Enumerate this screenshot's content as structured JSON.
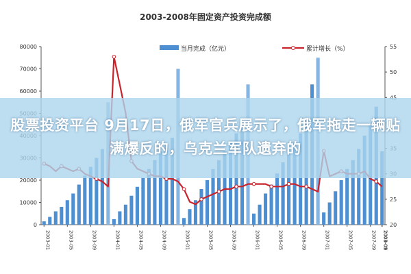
{
  "overlay": {
    "headline": "股票投资平台 9月17日，俄军官兵展示了，俄军拖走一辆贴满爆反的，乌克兰军队遗弃的"
  },
  "chart_data": {
    "type": "bar",
    "title": "2003-2008年固定资产投资完成额",
    "legend": {
      "placement": "top",
      "entries": [
        "当月完成（亿元）",
        "累计增长（%）"
      ]
    },
    "x_tick_labels": [
      "2003-01",
      "2003-05",
      "2003-09",
      "2004-01",
      "2004-05",
      "2004-09",
      "2005-01",
      "2005-05",
      "2005-09",
      "2006-01",
      "2006-05",
      "2006-09",
      "2007-01",
      "2007-05",
      "2007-09",
      "2008-01",
      "2008-05",
      "2008-09",
      "2009-01"
    ],
    "left_axis": {
      "ylim": [
        0,
        80000
      ],
      "ticks": [
        "0",
        "10000",
        "20000",
        "30000",
        "40000",
        "50000",
        "60000",
        "70000",
        "80000"
      ]
    },
    "right_axis": {
      "ylim": [
        20,
        55
      ],
      "ticks": [
        "20",
        "25",
        "30",
        "35",
        "40",
        "45",
        "50",
        "55"
      ]
    },
    "grid": false,
    "colors": {
      "bar": "#4d8fd1",
      "bar_light": "#86b5e2",
      "line": "#c9232c",
      "marker": "#ffffff"
    },
    "series": [
      {
        "type": "bar",
        "values": [
          1500,
          3500,
          6000,
          8000,
          11000,
          14000,
          18000,
          22000,
          26000,
          30000,
          34000,
          55000,
          2500,
          6000,
          9000,
          13000,
          17000,
          21000,
          25000,
          29000,
          33000,
          36000,
          39000,
          70000,
          3000,
          7000,
          11000,
          16000,
          20000,
          25000,
          29000,
          33000,
          37000,
          41000,
          45000,
          63000,
          5000,
          9000,
          14000,
          18000,
          23000,
          28000,
          32000,
          37000,
          41000,
          46000,
          63000,
          75000,
          5500,
          10000,
          15000,
          20000,
          25000,
          29000,
          34000,
          40000,
          45000,
          53000,
          33000
        ]
      },
      {
        "type": "line",
        "values": [
          32.0,
          31.5,
          30.5,
          31.5,
          31.0,
          30.5,
          31.0,
          30.0,
          29.5,
          29.0,
          28.5,
          27.5,
          53.0,
          47.5,
          42.0,
          32.5,
          31.0,
          30.5,
          30.0,
          29.5,
          29.5,
          29.0,
          29.0,
          28.5,
          27.0,
          24.5,
          24.0,
          25.0,
          25.5,
          26.0,
          26.5,
          27.0,
          27.0,
          27.5,
          27.5,
          28.0,
          28.0,
          28.0,
          28.0,
          27.5,
          27.5,
          27.5,
          28.0,
          28.0,
          27.5,
          27.5,
          27.0,
          26.5,
          34.5,
          29.5,
          30.0,
          30.5,
          30.0,
          30.0,
          30.0,
          30.5,
          29.0,
          28.5,
          27.5
        ]
      }
    ]
  }
}
